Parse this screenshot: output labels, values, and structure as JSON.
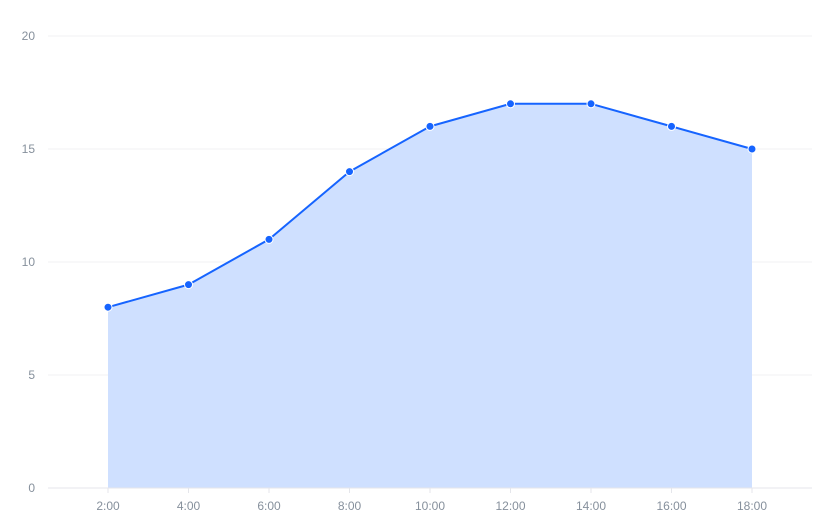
{
  "chart_data": {
    "type": "area",
    "title": "",
    "xlabel": "",
    "ylabel": "",
    "x": [
      "2:00",
      "4:00",
      "6:00",
      "8:00",
      "10:00",
      "12:00",
      "14:00",
      "16:00",
      "18:00"
    ],
    "series": [
      {
        "values": [
          8,
          9,
          11,
          14,
          16,
          17,
          17,
          16,
          15
        ]
      }
    ],
    "ylim": [
      0,
      20
    ],
    "y_ticks": [
      0,
      5,
      10,
      15,
      20
    ],
    "grid": "horizontal",
    "legend": "none",
    "colors": {
      "line": "#1664ff",
      "area": "#cfe0ff",
      "grid": "#f0f1f3",
      "axis": "#e5e6eb",
      "tick_text": "#86909c"
    }
  }
}
